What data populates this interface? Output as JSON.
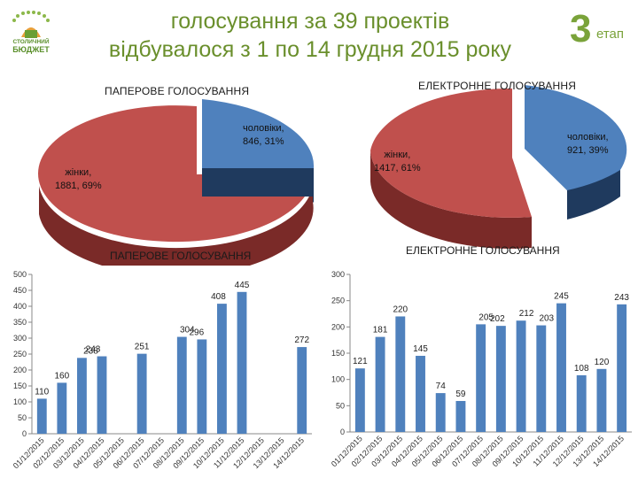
{
  "header": {
    "logo_text_line1": "СТОЛИЧНИЙ",
    "logo_text_line2": "БЮДЖЕТ",
    "title_line1": "голосування за 39 проектів",
    "title_line2": "відбувалося з 1 по 14 грудня 2015 року",
    "stage_number": "3",
    "stage_word": "етап"
  },
  "colors": {
    "female": "#c0504d",
    "male": "#4f81bd",
    "bar": "#4f81bd",
    "title_green": "#6a8f2c",
    "stage_badge": "#7aa33a"
  },
  "chart_data": [
    {
      "type": "pie",
      "title": "ПАПЕРОВЕ ГОЛОСУВАННЯ",
      "slices": [
        {
          "label": "жінки",
          "value": 1881,
          "percent": "69%",
          "display": "жінки,\n1881, 69%"
        },
        {
          "label": "чоловіки",
          "value": 846,
          "percent": "31%",
          "display": "чоловіки,\n846, 31%"
        }
      ]
    },
    {
      "type": "pie",
      "title": "ЕЛЕКТРОННЕ ГОЛОСУВАННЯ",
      "slices": [
        {
          "label": "жінки",
          "value": 1417,
          "percent": "61%",
          "display": "жінки,\n1417, 61%"
        },
        {
          "label": "чоловіки",
          "value": 921,
          "percent": "39%",
          "display": "чоловіки,\n921, 39%"
        }
      ]
    },
    {
      "type": "bar",
      "title": "ПАПЕРОВЕ ГОЛОСУВАННЯ",
      "categories": [
        "01/12/2015",
        "02/12/2015",
        "03/12/2015",
        "04/12/2015",
        "05/12/2015",
        "06/12/2015",
        "07/12/2015",
        "08/12/2015",
        "09/12/2015",
        "10/12/2015",
        "11/12/2015",
        "12/12/2015",
        "13/12/2015",
        "14/12/2015"
      ],
      "values": [
        110,
        160,
        238,
        243,
        0,
        251,
        0,
        304,
        296,
        408,
        445,
        0,
        0,
        272
      ],
      "labels": [
        "110",
        "160",
        "238",
        "243",
        "",
        "251",
        "",
        "304",
        "296",
        "408",
        "445",
        "",
        "",
        "272"
      ],
      "ylim": [
        0,
        500
      ],
      "yticks": [
        0,
        50,
        100,
        150,
        200,
        250,
        300,
        350,
        400,
        450,
        500
      ]
    },
    {
      "type": "bar",
      "title": "ЕЛЕКТРОННЕ ГОЛОСУВАННЯ",
      "categories": [
        "01/12/2015",
        "02/12/2015",
        "03/12/2015",
        "04/12/2015",
        "05/12/2015",
        "06/12/2015",
        "07/12/2015",
        "08/12/2015",
        "09/12/2015",
        "10/12/2015",
        "11/12/2015",
        "12/12/2015",
        "13/12/2015",
        "14/12/2015"
      ],
      "values": [
        121,
        181,
        220,
        145,
        74,
        59,
        205,
        202,
        212,
        203,
        245,
        108,
        120,
        243
      ],
      "labels": [
        "121",
        "181",
        "220",
        "145",
        "74",
        "59",
        "205",
        "202",
        "212",
        "203",
        "245",
        "108",
        "120",
        "243"
      ],
      "ylim": [
        0,
        300
      ],
      "yticks": [
        0,
        50,
        100,
        150,
        200,
        250,
        300
      ]
    }
  ]
}
